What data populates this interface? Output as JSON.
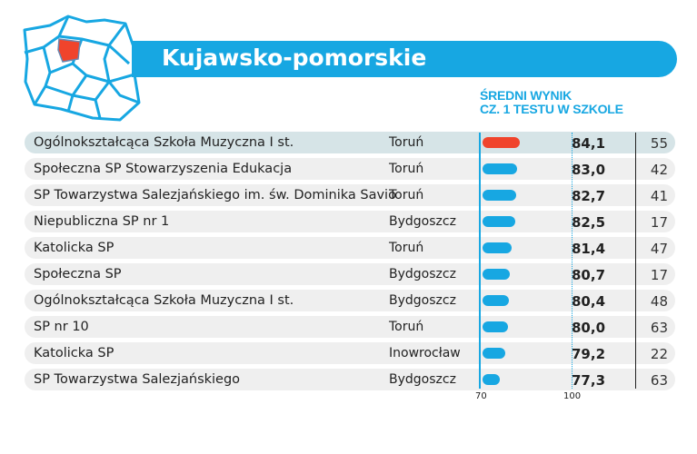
{
  "title": "Kujawsko-pomorskie",
  "column_header": [
    "ŚREDNI WYNIK",
    "CZ. 1 TESTU W SZKOLE"
  ],
  "colors": {
    "accent": "#17a7e2",
    "highlight": "#f0442c"
  },
  "chart_data": {
    "type": "bar",
    "title": "ŚREDNI WYNIK CZ. 1 TESTU W SZKOLE",
    "xlim": [
      70,
      100
    ],
    "ticks": [
      "70",
      "100"
    ],
    "rows": [
      {
        "name": "Ogólnokształcąca Szkoła Muzyczna I st.",
        "city": "Toruń",
        "value": 84.1,
        "label": "84,1",
        "count": "55",
        "highlight": true
      },
      {
        "name": "Społeczna SP Stowarzyszenia Edukacja",
        "city": "Toruń",
        "value": 83.0,
        "label": "83,0",
        "count": "42"
      },
      {
        "name": "SP Towarzystwa Salezjańskiego im. św. Dominika Savio",
        "city": "Toruń",
        "value": 82.7,
        "label": "82,7",
        "count": "41"
      },
      {
        "name": "Niepubliczna SP nr 1",
        "city": "Bydgoszcz",
        "value": 82.5,
        "label": "82,5",
        "count": "17"
      },
      {
        "name": "Katolicka SP",
        "city": "Toruń",
        "value": 81.4,
        "label": "81,4",
        "count": "47"
      },
      {
        "name": "Społeczna SP",
        "city": "Bydgoszcz",
        "value": 80.7,
        "label": "80,7",
        "count": "17"
      },
      {
        "name": "Ogólnokształcąca Szkoła Muzyczna I st.",
        "city": "Bydgoszcz",
        "value": 80.4,
        "label": "80,4",
        "count": "48"
      },
      {
        "name": "SP nr 10",
        "city": "Toruń",
        "value": 80.0,
        "label": "80,0",
        "count": "63"
      },
      {
        "name": "Katolicka SP",
        "city": "Inowrocław",
        "value": 79.2,
        "label": "79,2",
        "count": "22"
      },
      {
        "name": "SP Towarzystwa Salezjańskiego",
        "city": "Bydgoszcz",
        "value": 77.3,
        "label": "77,3",
        "count": "63"
      }
    ]
  }
}
